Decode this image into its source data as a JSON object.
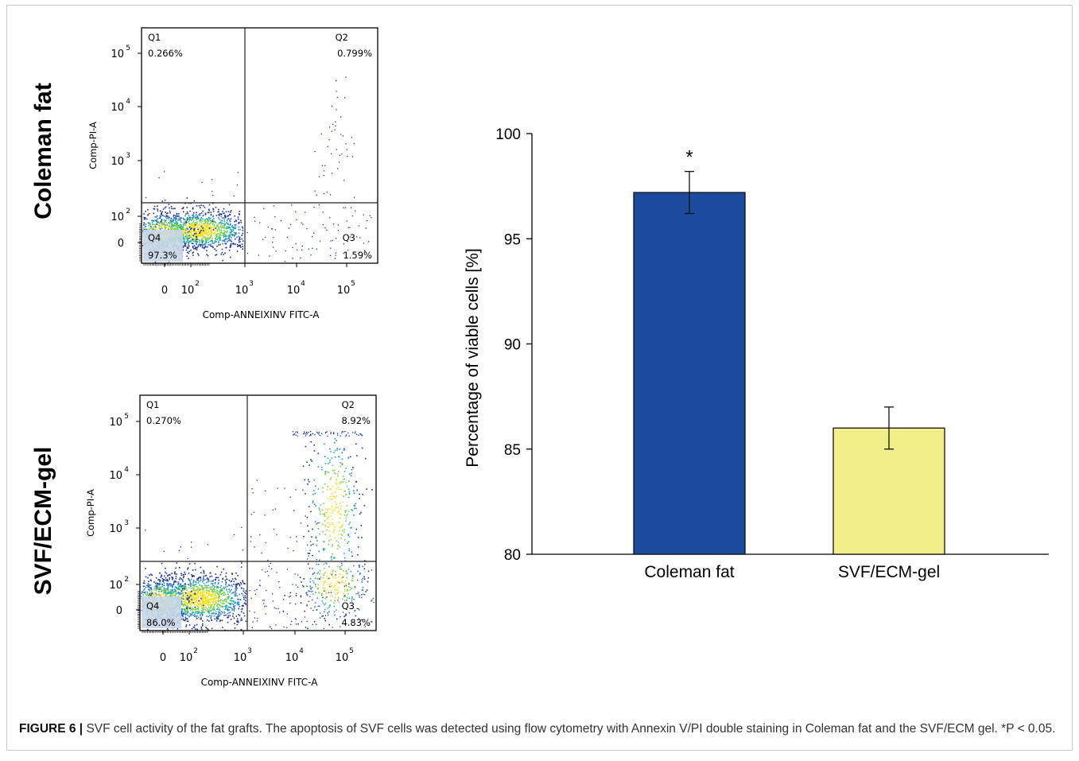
{
  "colors": {
    "coleman_bar": "#1c4a9c",
    "svf_bar": "#f2ee8a",
    "flow_dot_low": "#1a2f9a",
    "flow_dot_high": "#f0e020",
    "quadrant_label_bg": "#c8d7e6"
  },
  "panels": {
    "coleman": {
      "row_label": "Coleman fat",
      "y_axis_label": "Comp-PI-A",
      "x_axis_label": "Comp-ANNEIXINV FITC-A",
      "quadrants": {
        "q1": {
          "name": "Q1",
          "value": "0.266%"
        },
        "q2": {
          "name": "Q2",
          "value": "0.799%"
        },
        "q3": {
          "name": "Q3",
          "value": "1.59%"
        },
        "q4": {
          "name": "Q4",
          "value": "97.3%"
        }
      }
    },
    "svf": {
      "row_label": "SVF/ECM-gel",
      "y_axis_label": "Comp-PI-A",
      "x_axis_label": "Comp-ANNEIXINV FITC-A",
      "quadrants": {
        "q1": {
          "name": "Q1",
          "value": "0.270%"
        },
        "q2": {
          "name": "Q2",
          "value": "8.92%"
        },
        "q3": {
          "name": "Q3",
          "value": "4.83%"
        },
        "q4": {
          "name": "Q4",
          "value": "86.0%"
        }
      }
    }
  },
  "flow_axis_ticks": {
    "x": [
      {
        "base": "0",
        "exp": ""
      },
      {
        "base": "10",
        "exp": "2"
      },
      {
        "base": "10",
        "exp": "3"
      },
      {
        "base": "10",
        "exp": "4"
      },
      {
        "base": "10",
        "exp": "5"
      }
    ],
    "y": [
      {
        "base": "0",
        "exp": ""
      },
      {
        "base": "10",
        "exp": "2"
      },
      {
        "base": "10",
        "exp": "3"
      },
      {
        "base": "10",
        "exp": "4"
      },
      {
        "base": "10",
        "exp": "5"
      }
    ]
  },
  "chart_data": {
    "type": "bar",
    "title": "",
    "xlabel": "",
    "ylabel": "Percentage of viable cells [%]",
    "categories": [
      "Coleman fat",
      "SVF/ECM-gel"
    ],
    "values": [
      97.2,
      86.0
    ],
    "error": [
      1.0,
      1.0
    ],
    "ylim": [
      80,
      100
    ],
    "yticks": [
      80,
      85,
      90,
      95,
      100
    ],
    "significance": [
      "*",
      ""
    ],
    "grid": false,
    "legend": "none"
  },
  "caption": {
    "label": "FIGURE 6 |",
    "text": " SVF cell activity of the fat grafts. The apoptosis of SVF cells was detected using flow cytometry with Annexin V/PI double staining in Coleman fat and the SVF/ECM gel. *P < 0.05."
  }
}
